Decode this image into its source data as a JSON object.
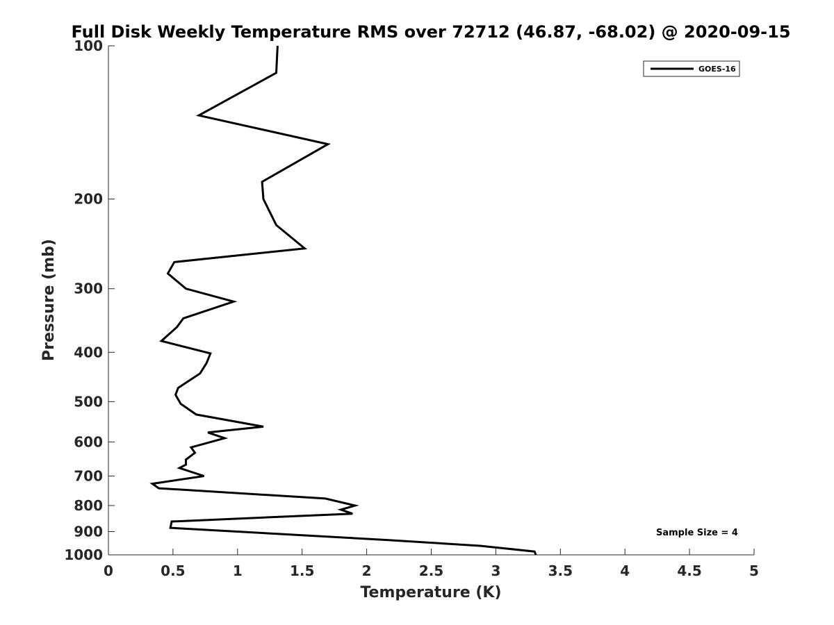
{
  "chart_data": {
    "type": "line",
    "title": "Full Disk Weekly Temperature RMS over 72712 (46.87, -68.02) @ 2020-09-15",
    "xlabel": "Temperature (K)",
    "ylabel": "Pressure (mb)",
    "xlim": [
      0,
      5
    ],
    "ylim": [
      100,
      1000
    ],
    "y_scale": "log",
    "y_reversed": true,
    "xticks": [
      0,
      0.5,
      1,
      1.5,
      2,
      2.5,
      3,
      3.5,
      4,
      4.5,
      5
    ],
    "xtick_labels": [
      "0",
      "0.5",
      "1",
      "1.5",
      "2",
      "2.5",
      "3",
      "3.5",
      "4",
      "4.5",
      "5"
    ],
    "yticks": [
      100,
      200,
      300,
      400,
      500,
      600,
      700,
      800,
      900,
      1000
    ],
    "ytick_labels": [
      "100",
      "200",
      "300",
      "400",
      "500",
      "600",
      "700",
      "800",
      "900",
      "1000"
    ],
    "grid": false,
    "legend_position": "top-right",
    "series": [
      {
        "name": "GOES-16",
        "color": "#000000",
        "x": [
          1.31,
          1.3,
          0.7,
          1.7,
          1.19,
          1.2,
          1.3,
          1.52,
          0.51,
          0.46,
          0.6,
          0.97,
          0.58,
          0.53,
          0.41,
          0.79,
          0.76,
          0.71,
          0.54,
          0.52,
          0.56,
          0.68,
          1.2,
          0.77,
          0.9,
          0.64,
          0.67,
          0.6,
          0.6,
          0.55,
          0.74,
          0.34,
          0.39,
          1.68,
          1.91,
          1.8,
          1.89,
          0.49,
          0.48,
          2.16,
          2.88,
          3.3,
          3.31
        ],
        "y": [
          100,
          113,
          137,
          156,
          185,
          200,
          225,
          250,
          266,
          280,
          300,
          318,
          343,
          357,
          380,
          402,
          420,
          440,
          470,
          485,
          505,
          530,
          560,
          575,
          590,
          615,
          630,
          650,
          665,
          675,
          700,
          725,
          740,
          775,
          800,
          815,
          830,
          860,
          885,
          935,
          960,
          985,
          1000
        ]
      }
    ],
    "annotations": [
      "Sample Size = 4"
    ]
  }
}
